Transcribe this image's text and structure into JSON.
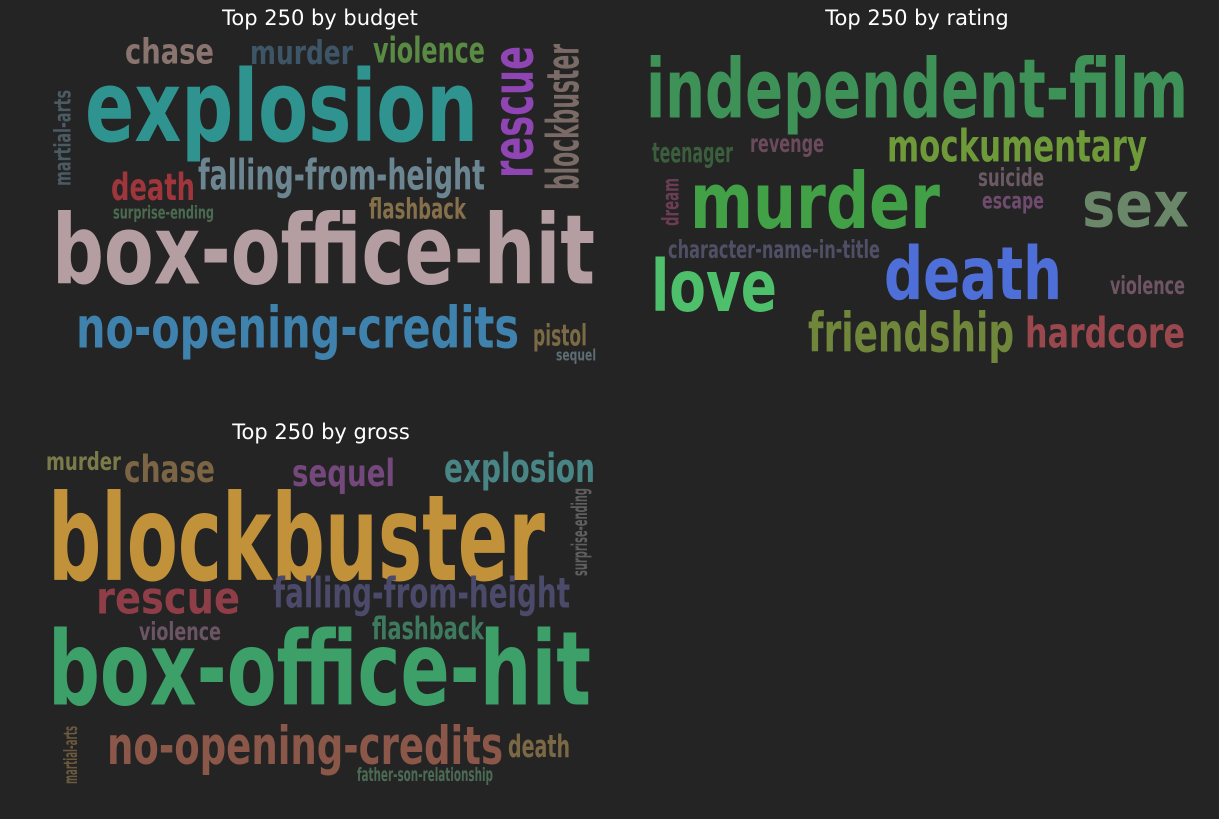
{
  "panels": [
    {
      "title": "Top 250 by budget",
      "words": [
        {
          "text": "chase",
          "color": "#8a7470"
        },
        {
          "text": "murder",
          "color": "#3d5566"
        },
        {
          "text": "violence",
          "color": "#5a8b44"
        },
        {
          "text": "explosion",
          "color": "#2f9490"
        },
        {
          "text": "rescue",
          "color": "#8f45b3"
        },
        {
          "text": "blockbuster",
          "color": "#7b6b67"
        },
        {
          "text": "martial-arts",
          "color": "#4b5b63"
        },
        {
          "text": "death",
          "color": "#a0363c"
        },
        {
          "text": "falling-from-height",
          "color": "#6b8591"
        },
        {
          "text": "surprise-ending",
          "color": "#4b6b50"
        },
        {
          "text": "flashback",
          "color": "#86704a"
        },
        {
          "text": "box-office-hit",
          "color": "#b59ea2"
        },
        {
          "text": "no-opening-credits",
          "color": "#3f82ad"
        },
        {
          "text": "pistol",
          "color": "#7a6a45"
        },
        {
          "text": "sequel",
          "color": "#5d6d73"
        }
      ]
    },
    {
      "title": "Top 250 by rating",
      "words": [
        {
          "text": "independent-film",
          "color": "#3e9258"
        },
        {
          "text": "teenager",
          "color": "#3b5e3c"
        },
        {
          "text": "revenge",
          "color": "#6b4a5c"
        },
        {
          "text": "mockumentary",
          "color": "#6f9a3a"
        },
        {
          "text": "murder",
          "color": "#42a047"
        },
        {
          "text": "suicide",
          "color": "#6b5a63"
        },
        {
          "text": "escape",
          "color": "#6f4b6e"
        },
        {
          "text": "sex",
          "color": "#6b8769"
        },
        {
          "text": "dream",
          "color": "#6b3d54"
        },
        {
          "text": "character-name-in-title",
          "color": "#4f4f66"
        },
        {
          "text": "love",
          "color": "#4ec06b"
        },
        {
          "text": "death",
          "color": "#4e6fd8"
        },
        {
          "text": "violence",
          "color": "#6f5563"
        },
        {
          "text": "friendship",
          "color": "#6f863b"
        },
        {
          "text": "hardcore",
          "color": "#9a474e"
        }
      ]
    },
    {
      "title": "Top 250 by gross",
      "words": [
        {
          "text": "murder",
          "color": "#7b7b4a"
        },
        {
          "text": "chase",
          "color": "#7b6545"
        },
        {
          "text": "sequel",
          "color": "#74487c"
        },
        {
          "text": "explosion",
          "color": "#4a8585"
        },
        {
          "text": "blockbuster",
          "color": "#c2923a"
        },
        {
          "text": "surprise-ending",
          "color": "#5f5f5f"
        },
        {
          "text": "rescue",
          "color": "#8f3e48"
        },
        {
          "text": "falling-from-height",
          "color": "#4c4a6b"
        },
        {
          "text": "violence",
          "color": "#6b5463"
        },
        {
          "text": "flashback",
          "color": "#3e7b5e"
        },
        {
          "text": "box-office-hit",
          "color": "#3ca068"
        },
        {
          "text": "martial-arts",
          "color": "#6b5a3e"
        },
        {
          "text": "no-opening-credits",
          "color": "#8a5748"
        },
        {
          "text": "death",
          "color": "#7b6845"
        },
        {
          "text": "father-son-relationship",
          "color": "#4b6b55"
        }
      ]
    }
  ]
}
